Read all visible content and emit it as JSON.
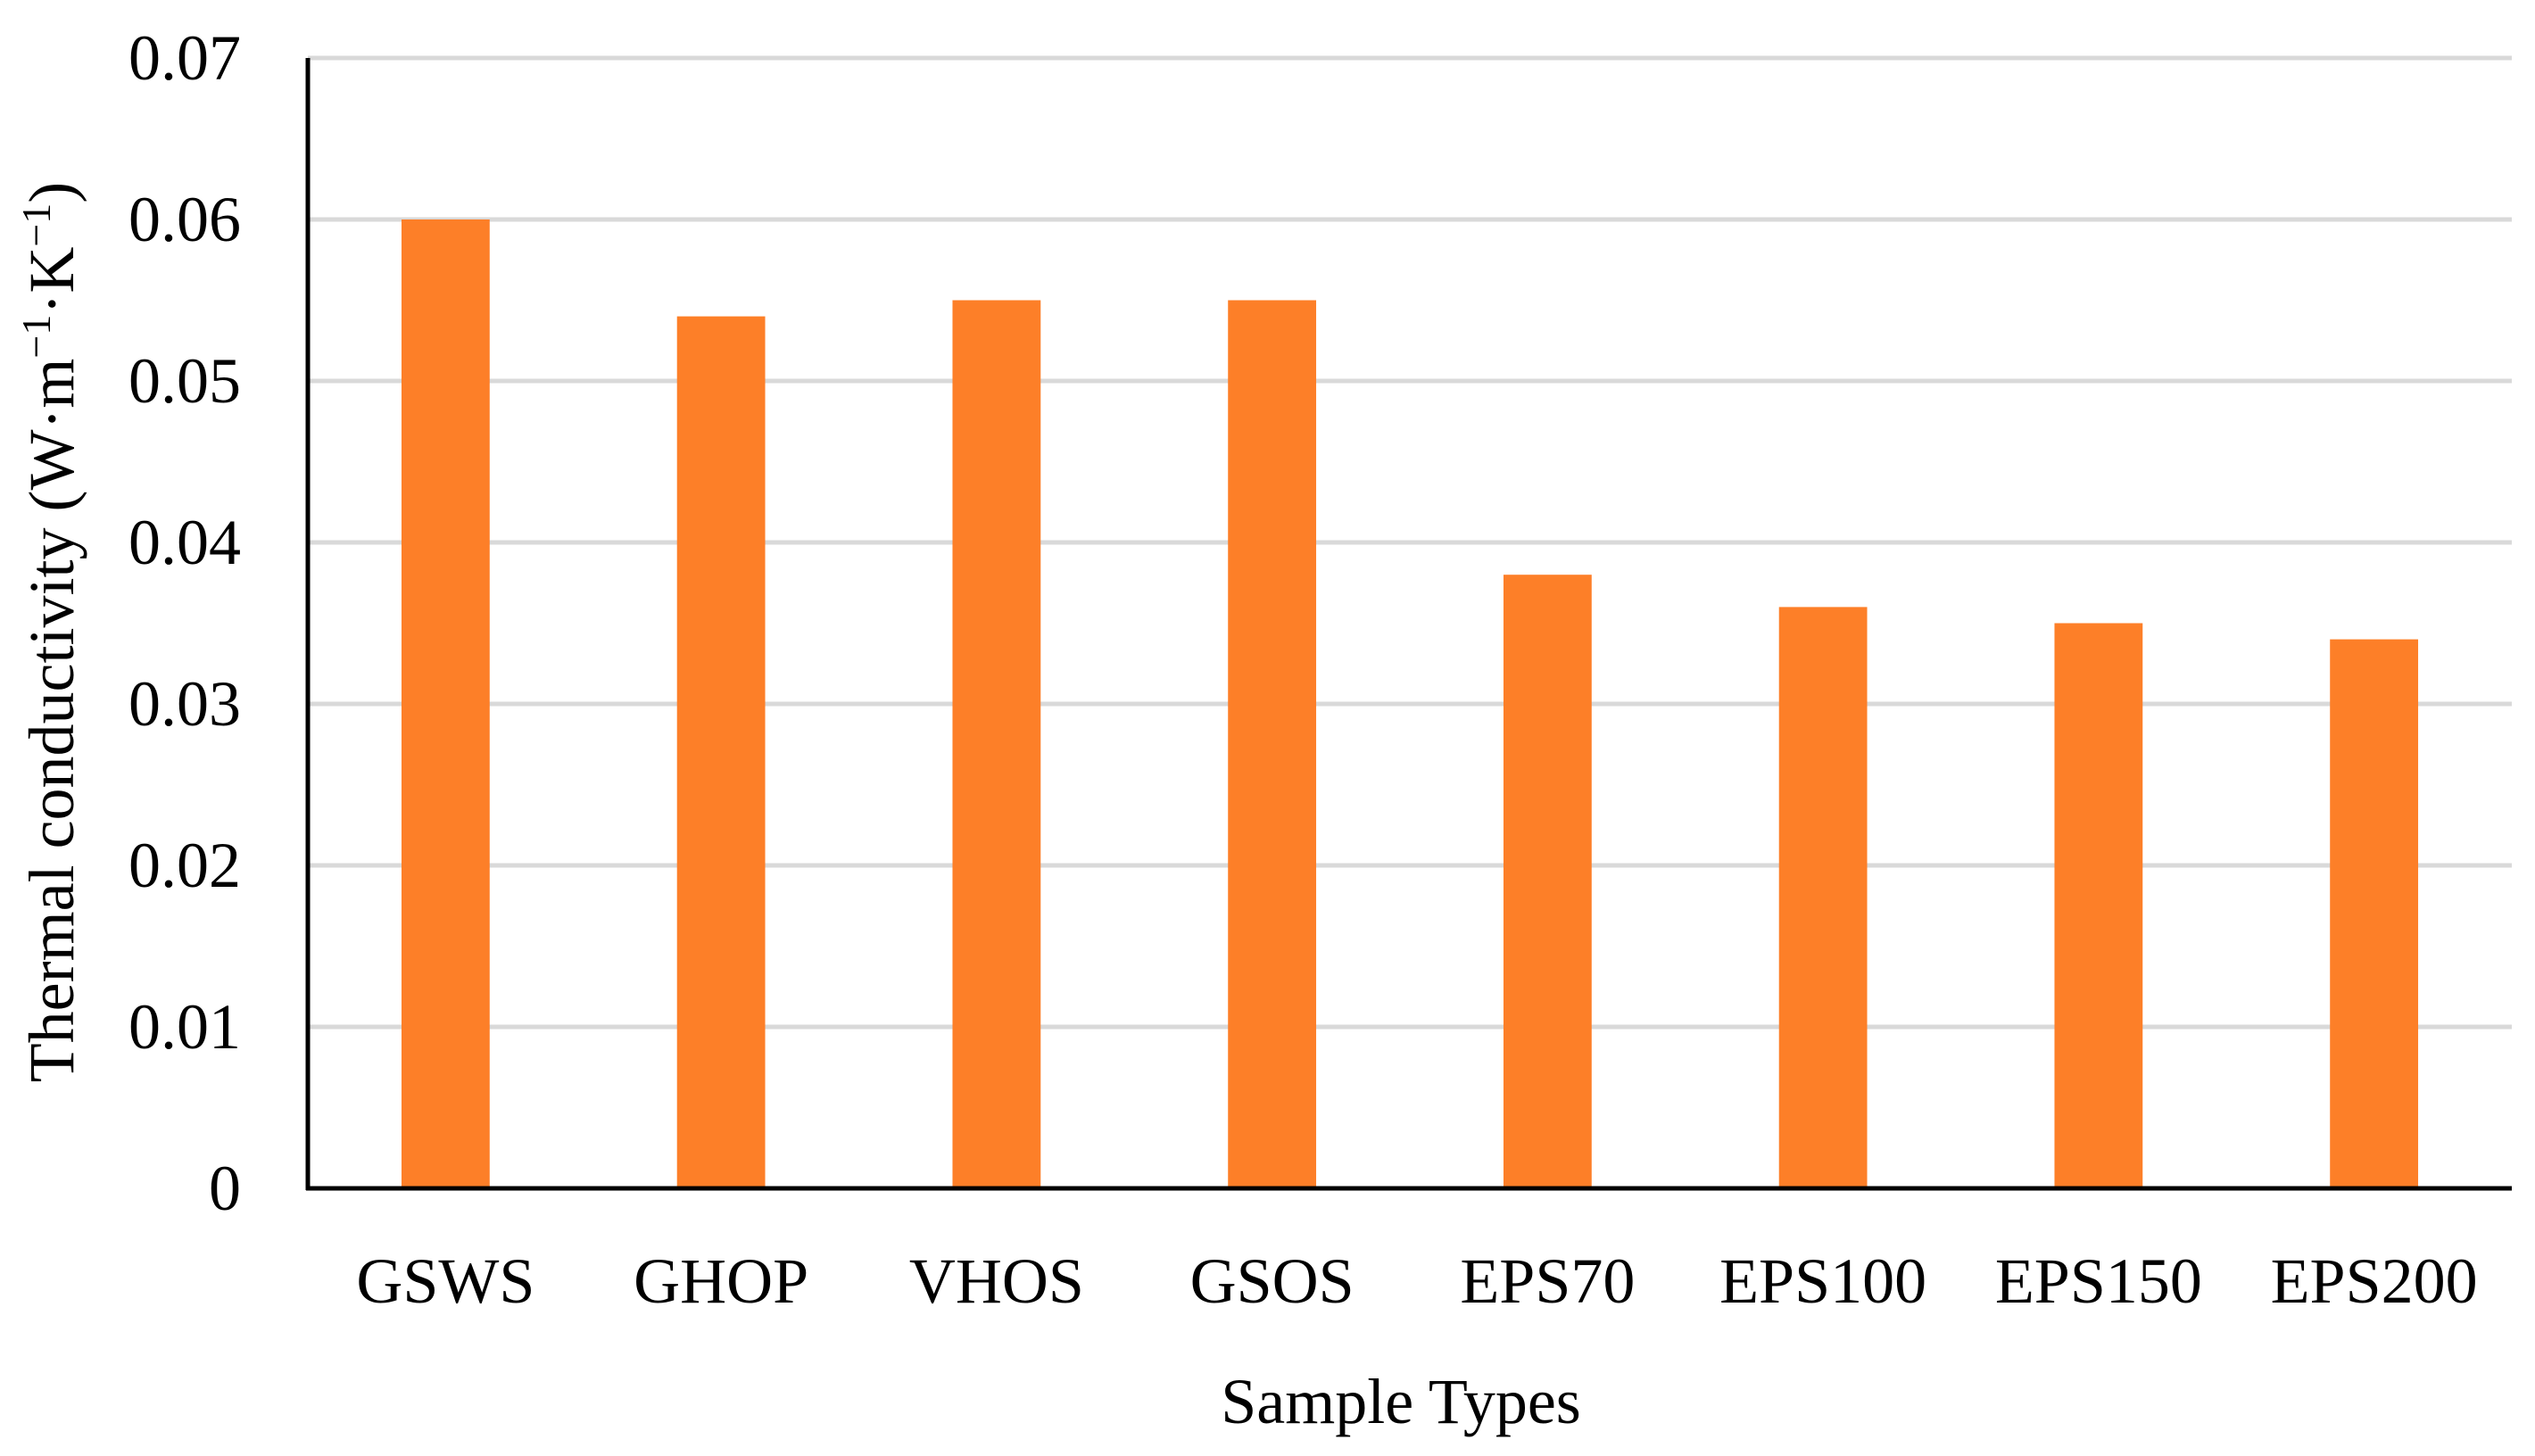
{
  "chart_data": {
    "type": "bar",
    "categories": [
      "GSWS",
      "GHOP",
      "VHOS",
      "GSOS",
      "EPS70",
      "EPS100",
      "EPS150",
      "EPS200"
    ],
    "values": [
      0.06,
      0.054,
      0.055,
      0.055,
      0.038,
      0.036,
      0.035,
      0.034
    ],
    "title": "",
    "xlabel": "Sample Types",
    "ylabel_main": "Thermal conductivity (W·m",
    "ylabel_sup1": "−1",
    "ylabel_mid": "·K",
    "ylabel_sup2": "−1",
    "ylabel_end": ")",
    "ylim": [
      0,
      0.07
    ],
    "yticks": [
      "0",
      "0.01",
      "0.02",
      "0.03",
      "0.04",
      "0.05",
      "0.06",
      "0.07"
    ],
    "grid": true,
    "legend": "none",
    "bar_color": "#fd7f28",
    "grid_color": "#d9d9d9",
    "axis_color": "#000000"
  }
}
